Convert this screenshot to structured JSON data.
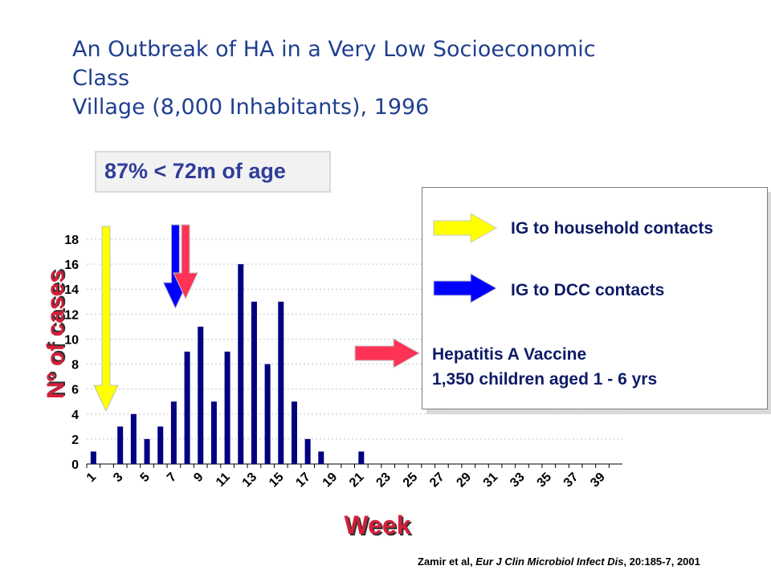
{
  "title": {
    "line1": "An Outbreak of HA in a Very Low Socioeconomic",
    "line2": "Class",
    "line3": "Village (8,000 Inhabitants), 1996"
  },
  "age_note": "87% < 72m of age",
  "legend": {
    "household": "IG to household contacts",
    "dcc": "IG to DCC contacts",
    "vaccine_line1": "Hepatitis A Vaccine",
    "vaccine_line2": "1,350  children aged 1 - 6 yrs"
  },
  "citation": {
    "authors": "Zamir et al, ",
    "journal": "Eur J Clin Microbiol Infect Dis",
    "details": ", 20:185-7, 2001"
  },
  "colors": {
    "bar": "#000080",
    "household_arrow": "#ffff00",
    "dcc_arrow": "#0000ff",
    "vaccine_arrow": "#ff3355",
    "axis_label": "#d41f3a"
  },
  "chart_data": {
    "type": "bar",
    "xlabel": "Week",
    "ylabel": "Nº of cases",
    "ylim": [
      0,
      18
    ],
    "yticks": [
      0,
      2,
      4,
      6,
      8,
      10,
      12,
      14,
      16,
      18
    ],
    "xtick_labels": [
      "1",
      "3",
      "5",
      "7",
      "9",
      "11",
      "13",
      "15",
      "17",
      "19",
      "21",
      "23",
      "25",
      "27",
      "29",
      "31",
      "33",
      "35",
      "37",
      "39"
    ],
    "weeks": [
      1,
      2,
      3,
      4,
      5,
      6,
      7,
      8,
      9,
      10,
      11,
      12,
      13,
      14,
      15,
      16,
      17,
      18,
      19,
      20,
      21,
      22,
      23,
      24,
      25,
      26,
      27,
      28,
      29,
      30,
      31,
      32,
      33,
      34,
      35,
      36,
      37,
      38,
      39,
      40
    ],
    "values": [
      1,
      0,
      3,
      4,
      2,
      3,
      5,
      9,
      11,
      5,
      9,
      16,
      13,
      8,
      13,
      5,
      2,
      1,
      0,
      0,
      1,
      0,
      0,
      0,
      0,
      0,
      0,
      0,
      0,
      0,
      0,
      0,
      0,
      0,
      0,
      0,
      0,
      0,
      0,
      0
    ],
    "grid": true,
    "interventions": [
      {
        "label": "IG to household contacts",
        "week": 2
      },
      {
        "label": "IG to DCC contacts",
        "week": 7
      },
      {
        "label": "Hepatitis A Vaccine",
        "week": 8
      }
    ]
  }
}
